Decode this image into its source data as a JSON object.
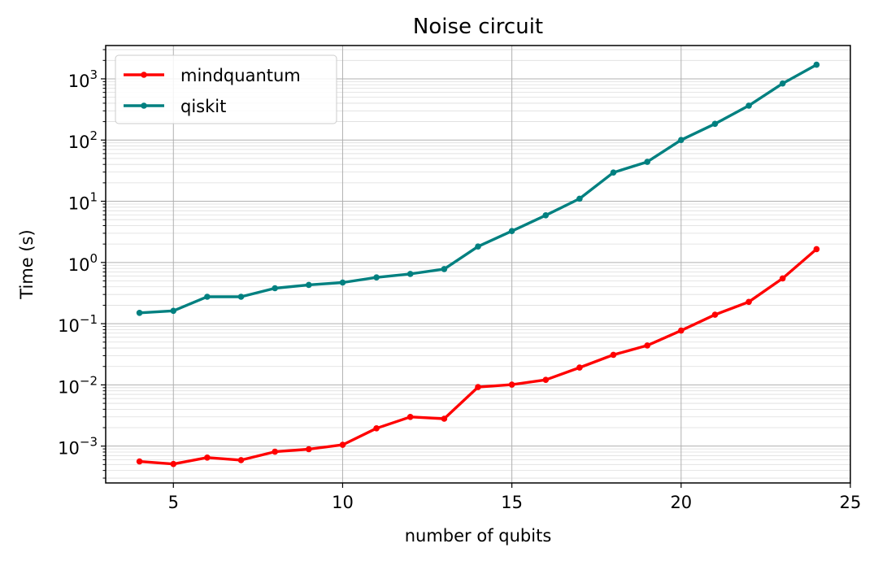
{
  "chart_data": {
    "type": "line",
    "title": "Noise circuit",
    "xlabel": "number of qubits",
    "ylabel": "Time (s)",
    "xlim": [
      3,
      25
    ],
    "ylim": [
      0.00025,
      3500
    ],
    "yscale": "log",
    "grid": "major and minor",
    "legend_position": "top-left",
    "x_ticks": [
      5,
      10,
      15,
      20,
      25
    ],
    "y_ticks": [
      {
        "value": 0.001,
        "base": "10",
        "exp": "−3"
      },
      {
        "value": 0.01,
        "base": "10",
        "exp": "−2"
      },
      {
        "value": 0.1,
        "base": "10",
        "exp": "−1"
      },
      {
        "value": 1,
        "base": "10",
        "exp": "0"
      },
      {
        "value": 10,
        "base": "10",
        "exp": "1"
      },
      {
        "value": 100,
        "base": "10",
        "exp": "2"
      },
      {
        "value": 1000,
        "base": "10",
        "exp": "3"
      }
    ],
    "x": [
      4,
      5,
      6,
      7,
      8,
      9,
      10,
      11,
      12,
      13,
      14,
      15,
      16,
      17,
      18,
      19,
      20,
      21,
      22,
      23,
      24
    ],
    "series": [
      {
        "name": "mindquantum",
        "color": "#ff0000",
        "values": [
          0.00056,
          0.00051,
          0.00065,
          0.00059,
          0.00081,
          0.00089,
          0.00105,
          0.00195,
          0.003,
          0.0028,
          0.0092,
          0.0101,
          0.0121,
          0.0192,
          0.031,
          0.044,
          0.077,
          0.14,
          0.227,
          0.55,
          1.65
        ]
      },
      {
        "name": "qiskit",
        "color": "#008080",
        "values": [
          0.15,
          0.162,
          0.275,
          0.275,
          0.38,
          0.43,
          0.47,
          0.57,
          0.65,
          0.78,
          1.82,
          3.26,
          5.9,
          11,
          29.5,
          44,
          100,
          184,
          365,
          840,
          1700
        ]
      }
    ]
  }
}
